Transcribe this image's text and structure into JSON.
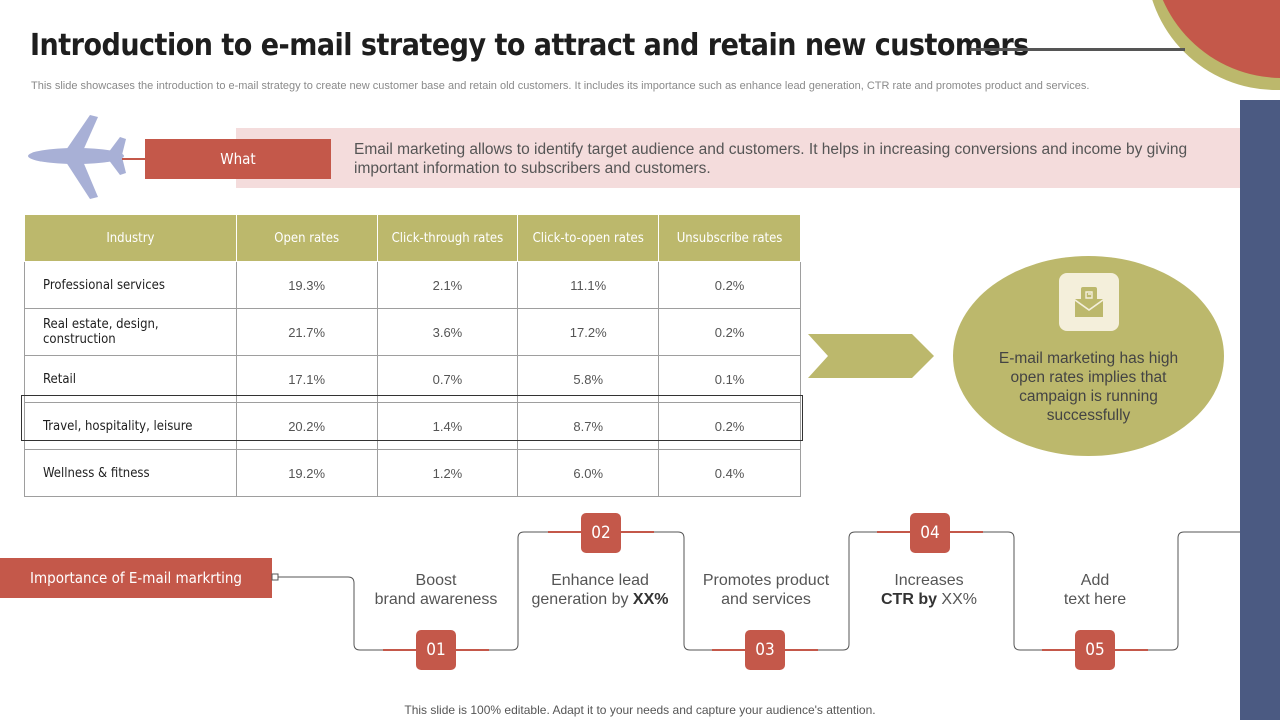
{
  "header": {
    "title": "Introduction to e-mail strategy to attract and retain new customers",
    "subtitle": "This slide showcases the introduction to e-mail strategy to create new customer base and retain old customers. It includes its importance such as enhance lead generation, CTR rate and promotes product and services."
  },
  "what": {
    "label": "What",
    "text": "Email marketing allows to identify target audience and customers. It helps in increasing conversions and income by giving important information to subscribers and customers."
  },
  "table": {
    "headers": [
      "Industry",
      "Open rates",
      "Click-through  rates",
      "Click-to-open  rates",
      "Unsubscribe  rates"
    ],
    "rows": [
      [
        "Professional  services",
        "19.3%",
        "2.1%",
        "11.1%",
        "0.2%"
      ],
      [
        "Real estate,  design,  construction",
        "21.7%",
        "3.6%",
        "17.2%",
        "0.2%"
      ],
      [
        "Retail",
        "17.1%",
        "0.7%",
        "5.8%",
        "0.1%"
      ],
      [
        "Travel, hospitality,  leisure",
        "20.2%",
        "1.4%",
        "8.7%",
        "0.2%"
      ],
      [
        "Wellness  &  fitness",
        "19.2%",
        "1.2%",
        "6.0%",
        "0.4%"
      ]
    ]
  },
  "insight": {
    "text": "E-mail marketing has high open rates implies that campaign is running successfully"
  },
  "importance": {
    "label": "Importance  of E-mail  markrting",
    "steps": [
      {
        "num": "01",
        "line1": "Boost",
        "line2": "brand awareness"
      },
      {
        "num": "02",
        "line1": "Enhance lead",
        "line2_pre": "generation by ",
        "line2_bold": "XX%"
      },
      {
        "num": "03",
        "line1": "Promotes product",
        "line2": "and services"
      },
      {
        "num": "04",
        "line1": "Increases",
        "line2_bold": "CTR by",
        "line2_post": " XX%"
      },
      {
        "num": "05",
        "line1": "Add",
        "line2": "text here"
      }
    ]
  },
  "footer": "This slide is 100% editable. Adapt it to your needs and capture your audience's attention.",
  "colors": {
    "accent_red": "#c4584a",
    "olive": "#bcb86c",
    "navy": "#4b5a82",
    "pink_band": "#f4dcdc"
  }
}
